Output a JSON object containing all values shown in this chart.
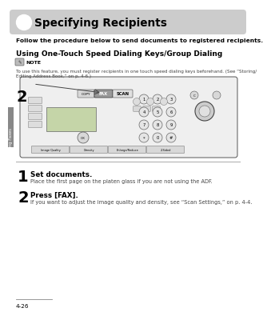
{
  "bg_color": "#ffffff",
  "title": "Specifying Recipients",
  "title_bg": "#cccccc",
  "intro_text": "Follow the procedure below to send documents to registered recipients.",
  "section_title": "Using One-Touch Speed Dialing Keys/Group Dialing",
  "note_line1": "To use this feature, you must register recipients in one touch speed dialing keys beforehand. (See “Storing/",
  "note_line2": "Editing Address Book,” on p. 4-6.)",
  "step1_num": "1",
  "step1_title": "Set documents.",
  "step1_body": "Place the first page on the platen glass if you are not using the ADF.",
  "step2_num": "2",
  "step2_title": "Press [FAX].",
  "step2_body": "If you want to adjust the image quality and density, see “Scan Settings,” on p. 4-4.",
  "footer": "4-26",
  "sidebar_text": "Sending Faxes",
  "sidebar_bg": "#888888",
  "fax_label": "FAX",
  "scan_label": "SCAN"
}
